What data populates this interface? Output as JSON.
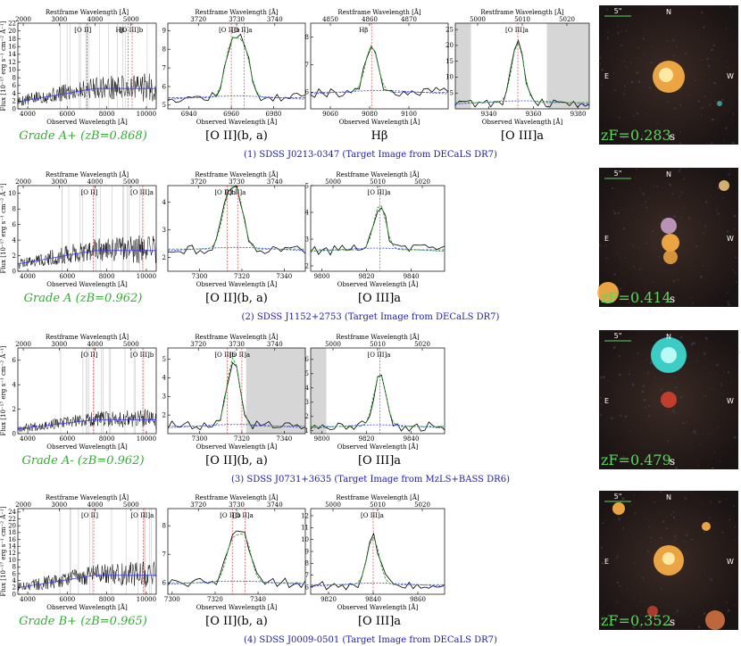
{
  "figure": {
    "rows": [
      {
        "grade": "Grade A+ (zB=0.868)",
        "caption": "(1) SDSS J0213-0347 (Target Image from DECaLS DR7)",
        "zf": "zF=0.283",
        "panels": [
          {
            "kind": "full",
            "label": "",
            "restTicks": [
              "2000",
              "3000",
              "4000",
              "5000"
            ],
            "restRange": [
              1850,
              5700
            ],
            "obsTicks": [
              "4000",
              "6000",
              "8000",
              "10000"
            ],
            "obsRange": [
              3500,
              10500
            ],
            "yTicks": [
              "0",
              "2",
              "4",
              "6",
              "8",
              "10",
              "12",
              "14",
              "16",
              "18",
              "20",
              "22"
            ],
            "yRange": [
              0,
              22
            ],
            "contLevel": 5.5,
            "lines": [
              {
                "t": "[O II]",
                "x": 6990
              },
              {
                "t": "Hβ",
                "x": 9080
              },
              {
                "t": "[O III]b",
                "x": 9280
              }
            ]
          },
          {
            "kind": "zoom",
            "label": "[O II](b, a)",
            "restTicks": [
              "3720",
              "3730",
              "3740"
            ],
            "restRange": [
              3712,
              3748
            ],
            "obsTicks": [
              "6940",
              "6960",
              "6980"
            ],
            "obsRange": [
              6930,
              6995
            ],
            "yTicks": [
              "5",
              "6",
              "7",
              "8",
              "9"
            ],
            "yRange": [
              4.8,
              9.4
            ],
            "lineLabels": [
              {
                "t": "[O II]b",
                "x": 6960
              },
              {
                "t": "[O II]a",
                "x": 6966
              }
            ],
            "peaks": [
              {
                "x": 6960,
                "h": 8.2
              },
              {
                "x": 6966,
                "h": 8.0
              }
            ],
            "base": 5.4,
            "gray": null
          },
          {
            "kind": "zoom",
            "label": "Hβ",
            "restTicks": [
              "4850",
              "4860",
              "4870"
            ],
            "restRange": [
              4845,
              4880
            ],
            "obsTicks": [
              "9060",
              "9080",
              "9100"
            ],
            "obsRange": [
              9050,
              9120
            ],
            "yTicks": [
              "6",
              "7",
              "8"
            ],
            "yRange": [
              5.4,
              8.5
            ],
            "lineLabels": [
              {
                "t": "Hβ",
                "x": 9081
              }
            ],
            "peaks": [
              {
                "x": 9081,
                "h": 7.7
              }
            ],
            "base": 6.0,
            "gray": null
          },
          {
            "kind": "zoom",
            "label": "[O III]a",
            "restTicks": [
              "5000",
              "5010",
              "5020"
            ],
            "restRange": [
              4995,
              5025
            ],
            "obsTicks": [
              "9340",
              "9360",
              "9380"
            ],
            "obsRange": [
              9325,
              9385
            ],
            "yTicks": [
              "5",
              "10",
              "15",
              "20",
              "25"
            ],
            "yRange": [
              0,
              27
            ],
            "lineLabels": [
              {
                "t": "[O III]a",
                "x": 9353
              }
            ],
            "peaks": [
              {
                "x": 9353,
                "h": 21
              }
            ],
            "base": 2.0,
            "gray": [
              [
                9325,
                9332
              ],
              [
                9366,
                9385
              ]
            ]
          }
        ]
      },
      {
        "grade": "Grade A (zB=0.962)",
        "caption": "(2) SDSS J1152+2753 (Target Image from DECaLS DR7)",
        "zf": "zF=0.414",
        "panels": [
          {
            "kind": "full",
            "label": "",
            "restTicks": [
              "2000",
              "3000",
              "4000",
              "5000"
            ],
            "restRange": [
              1850,
              5700
            ],
            "obsTicks": [
              "4000",
              "6000",
              "8000",
              "10000"
            ],
            "obsRange": [
              3500,
              10500
            ],
            "yTicks": [
              "0",
              "2",
              "4",
              "6",
              "8",
              "10"
            ],
            "yRange": [
              0,
              11
            ],
            "contLevel": 2.8,
            "lines": [
              {
                "t": "[O II]",
                "x": 7316
              },
              {
                "t": "[O III]a",
                "x": 9822
              }
            ]
          },
          {
            "kind": "zoom",
            "label": "[O II](b, a)",
            "restTicks": [
              "3720",
              "3730",
              "3740"
            ],
            "restRange": [
              3712,
              3748
            ],
            "obsTicks": [
              "7300",
              "7320",
              "7340"
            ],
            "obsRange": [
              7285,
              7350
            ],
            "yTicks": [
              "2",
              "3",
              "4"
            ],
            "yRange": [
              1.5,
              4.6
            ],
            "lineLabels": [
              {
                "t": "[O II]b",
                "x": 7313
              },
              {
                "t": "[O II]a",
                "x": 7318
              }
            ],
            "peaks": [
              {
                "x": 7313,
                "h": 3.8
              },
              {
                "x": 7318,
                "h": 4.1
              }
            ],
            "base": 2.3,
            "gray": null
          },
          {
            "kind": "zoom",
            "label": "[O III]a",
            "restTicks": [
              "5000",
              "5010",
              "5020"
            ],
            "restRange": [
              4995,
              5025
            ],
            "obsTicks": [
              "9800",
              "9820",
              "9840"
            ],
            "obsRange": [
              9795,
              9855
            ],
            "yTicks": [
              "2",
              "3",
              "4",
              "5"
            ],
            "yRange": [
              1.8,
              5.0
            ],
            "lineLabels": [
              {
                "t": "[O III]a",
                "x": 9826
              }
            ],
            "peaks": [
              {
                "x": 9826,
                "h": 4.3
              }
            ],
            "base": 2.6,
            "gray": null
          }
        ]
      },
      {
        "grade": "Grade A- (zB=0.962)",
        "caption": "(3) SDSS J0731+3635 (Target Image from MzLS+BASS DR6)",
        "zf": "zF=0.479",
        "panels": [
          {
            "kind": "full",
            "label": "",
            "restTicks": [
              "2000",
              "3000",
              "4000",
              "5000"
            ],
            "restRange": [
              1850,
              5700
            ],
            "obsTicks": [
              "4000",
              "6000",
              "8000",
              "10000"
            ],
            "obsRange": [
              3500,
              10500
            ],
            "yTicks": [
              "0",
              "2",
              "4",
              "6"
            ],
            "yRange": [
              0,
              7
            ],
            "contLevel": 1.2,
            "lines": [
              {
                "t": "[O II]",
                "x": 7316
              },
              {
                "t": "[O III]b",
                "x": 9822
              }
            ]
          },
          {
            "kind": "zoom",
            "label": "[O II](b, a)",
            "restTicks": [
              "3720",
              "3730",
              "3740"
            ],
            "restRange": [
              3712,
              3748
            ],
            "obsTicks": [
              "7300",
              "7320",
              "7340"
            ],
            "obsRange": [
              7285,
              7350
            ],
            "yTicks": [
              "2",
              "3",
              "4",
              "5"
            ],
            "yRange": [
              1.0,
              5.6
            ],
            "lineLabels": [
              {
                "t": "[O II]b",
                "x": 7313
              },
              {
                "t": "[O II]a",
                "x": 7320
              }
            ],
            "peaks": [
              {
                "x": 7316,
                "h": 5.1
              }
            ],
            "base": 1.4,
            "gray": [
              [
                7322,
                7350
              ]
            ]
          },
          {
            "kind": "zoom",
            "label": "[O III]a",
            "restTicks": [
              "5000",
              "5010",
              "5020"
            ],
            "restRange": [
              4995,
              5025
            ],
            "obsTicks": [
              "9800",
              "9820",
              "9840"
            ],
            "obsRange": [
              9795,
              9855
            ],
            "yTicks": [
              "1",
              "2",
              "3",
              "4",
              "5",
              "6"
            ],
            "yRange": [
              0.8,
              6.8
            ],
            "lineLabels": [
              {
                "t": "[O III]a",
                "x": 9826
              }
            ],
            "peaks": [
              {
                "x": 9826,
                "h": 5.0
              }
            ],
            "base": 1.3,
            "gray": [
              [
                9795,
                9802
              ]
            ]
          }
        ]
      },
      {
        "grade": "Grade B+ (zB=0.965)",
        "caption": "(4) SDSS J0009-0501 (Target Image from DECaLS DR7)",
        "zf": "zF=0.352",
        "panels": [
          {
            "kind": "full",
            "label": "",
            "restTicks": [
              "2000",
              "3000",
              "4000",
              "5000"
            ],
            "restRange": [
              1850,
              5700
            ],
            "obsTicks": [
              "4000",
              "6000",
              "8000",
              "10000"
            ],
            "obsRange": [
              3500,
              10500
            ],
            "yTicks": [
              "0",
              "2",
              "4",
              "6",
              "8",
              "10",
              "12",
              "14",
              "16",
              "18",
              "20",
              "22",
              "24"
            ],
            "yRange": [
              0,
              25
            ],
            "contLevel": 5.8,
            "lines": [
              {
                "t": "[O II]",
                "x": 7338
              },
              {
                "t": "[O III]a",
                "x": 9840
              }
            ]
          },
          {
            "kind": "zoom",
            "label": "[O II](b, a)",
            "restTicks": [
              "3720",
              "3730",
              "3740"
            ],
            "restRange": [
              3712,
              3748
            ],
            "obsTicks": [
              "7300",
              "7320",
              "7340"
            ],
            "obsRange": [
              7298,
              7362
            ],
            "yTicks": [
              "6",
              "7",
              "8"
            ],
            "yRange": [
              5.6,
              8.6
            ],
            "lineLabels": [
              {
                "t": "[O II]b",
                "x": 7328
              },
              {
                "t": "[O II]a",
                "x": 7334
              }
            ],
            "peaks": [
              {
                "x": 7328,
                "h": 7.4
              },
              {
                "x": 7334,
                "h": 7.5
              }
            ],
            "base": 6.0,
            "gray": null
          },
          {
            "kind": "zoom",
            "label": "[O III]a",
            "restTicks": [
              "5000",
              "5010",
              "5020"
            ],
            "restRange": [
              4995,
              5025
            ],
            "obsTicks": [
              "9820",
              "9840",
              "9860"
            ],
            "obsRange": [
              9812,
              9872
            ],
            "yTicks": [
              "6",
              "7",
              "8",
              "9",
              "10",
              "11",
              "12"
            ],
            "yRange": [
              5.4,
              12.6
            ],
            "lineLabels": [
              {
                "t": "[O III]a",
                "x": 9840
              }
            ],
            "peaks": [
              {
                "x": 9840,
                "h": 10.2
              }
            ],
            "base": 6.2,
            "gray": null
          }
        ]
      }
    ],
    "axisText": {
      "rest": "Restframe Wavelength [Å]",
      "obs": "Observed Wavelength [Å]",
      "flux": "Flux [10⁻¹⁷ erg s⁻¹ cm⁻² Å⁻¹]"
    },
    "cutoutText": {
      "scale": "5\"",
      "n": "N",
      "e": "E",
      "w": "W",
      "s": "s"
    }
  },
  "colors": {
    "model": "#2ca02c",
    "continuum": "#3a3aff",
    "marker": "#d62728",
    "gray": "#d6d6d6",
    "grade": "#2fae2f",
    "caption": "#1a1ab4",
    "zf": "#5cd65c"
  }
}
